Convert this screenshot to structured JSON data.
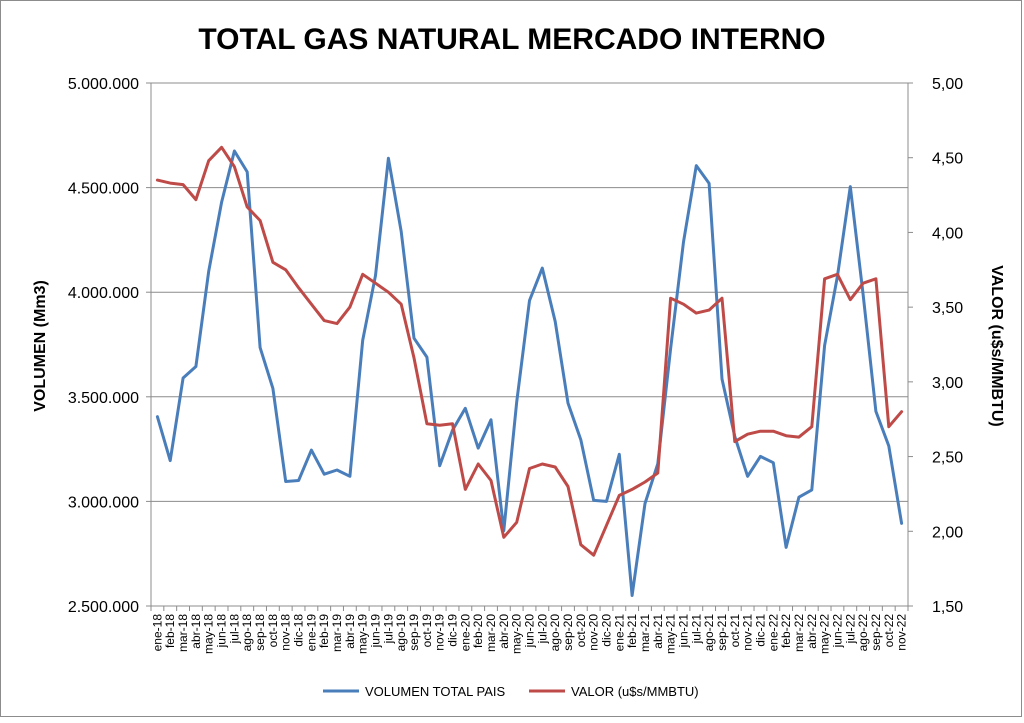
{
  "chart_data": {
    "type": "line",
    "title": "TOTAL GAS NATURAL MERCADO INTERNO",
    "ylabel_left": "VOLUMEN (Mm3)",
    "ylabel_right": "VALOR (u$s/MMBTU)",
    "ylim_left": [
      2500000,
      5000000
    ],
    "ylim_right": [
      1.5,
      5.0
    ],
    "yticks_left": [
      "2.500.000",
      "3.000.000",
      "3.500.000",
      "4.000.000",
      "4.500.000",
      "5.000.000"
    ],
    "yticks_right": [
      "1,50",
      "2,00",
      "2,50",
      "3,00",
      "3,50",
      "4,00",
      "4,50",
      "5,00"
    ],
    "grid": true,
    "legend_position": "bottom",
    "categories": [
      "ene-18",
      "feb-18",
      "mar-18",
      "abr-18",
      "may-18",
      "jun-18",
      "jul-18",
      "ago-18",
      "sep-18",
      "oct-18",
      "nov-18",
      "dic-18",
      "ene-19",
      "feb-19",
      "mar-19",
      "abr-19",
      "may-19",
      "jun-19",
      "jul-19",
      "ago-19",
      "sep-19",
      "oct-19",
      "nov-19",
      "dic-19",
      "ene-20",
      "feb-20",
      "mar-20",
      "abr-20",
      "may-20",
      "jun-20",
      "jul-20",
      "ago-20",
      "sep-20",
      "oct-20",
      "nov-20",
      "dic-20",
      "ene-21",
      "feb-21",
      "mar-21",
      "abr-21",
      "may-21",
      "jun-21",
      "jul-21",
      "ago-21",
      "sep-21",
      "oct-21",
      "nov-21",
      "dic-21",
      "ene-22",
      "feb-22",
      "mar-22",
      "abr-22",
      "may-22",
      "jun-22",
      "jul-22",
      "ago-22",
      "sep-22",
      "oct-22",
      "nov-22"
    ],
    "series": [
      {
        "name": "VOLUMEN TOTAL PAIS",
        "axis": "left",
        "color": "#4a7ebb",
        "values": [
          3405000,
          3195000,
          3590000,
          3645000,
          4100000,
          4430000,
          4675000,
          4575000,
          3735000,
          3540000,
          3095000,
          3100000,
          3245000,
          3130000,
          3150000,
          3120000,
          3770000,
          4080000,
          4640000,
          4290000,
          3780000,
          3690000,
          3170000,
          3340000,
          3445000,
          3255000,
          3390000,
          2860000,
          3475000,
          3960000,
          4115000,
          3860000,
          3470000,
          3295000,
          3005000,
          3000000,
          3225000,
          2550000,
          2990000,
          3180000,
          3730000,
          4240000,
          4605000,
          4520000,
          3585000,
          3310000,
          3120000,
          3215000,
          3185000,
          2780000,
          3020000,
          3055000,
          3745000,
          4075000,
          4505000,
          3990000,
          3430000,
          3265000,
          2895000
        ]
      },
      {
        "name": "VALOR (u$s/MMBTU)",
        "axis": "right",
        "color": "#be4b48",
        "values": [
          4.35,
          4.33,
          4.32,
          4.22,
          4.48,
          4.57,
          4.44,
          4.17,
          4.08,
          3.8,
          3.75,
          3.63,
          3.52,
          3.41,
          3.39,
          3.5,
          3.72,
          3.66,
          3.6,
          3.52,
          3.16,
          2.72,
          2.71,
          2.72,
          2.28,
          2.45,
          2.34,
          1.96,
          2.06,
          2.42,
          2.45,
          2.43,
          2.3,
          1.91,
          1.84,
          2.04,
          2.24,
          2.28,
          2.33,
          2.39,
          3.56,
          3.52,
          3.46,
          3.48,
          3.56,
          2.6,
          2.65,
          2.67,
          2.67,
          2.64,
          2.63,
          2.7,
          3.69,
          3.72,
          3.55,
          3.66,
          3.69,
          2.7,
          2.8
        ]
      }
    ]
  }
}
